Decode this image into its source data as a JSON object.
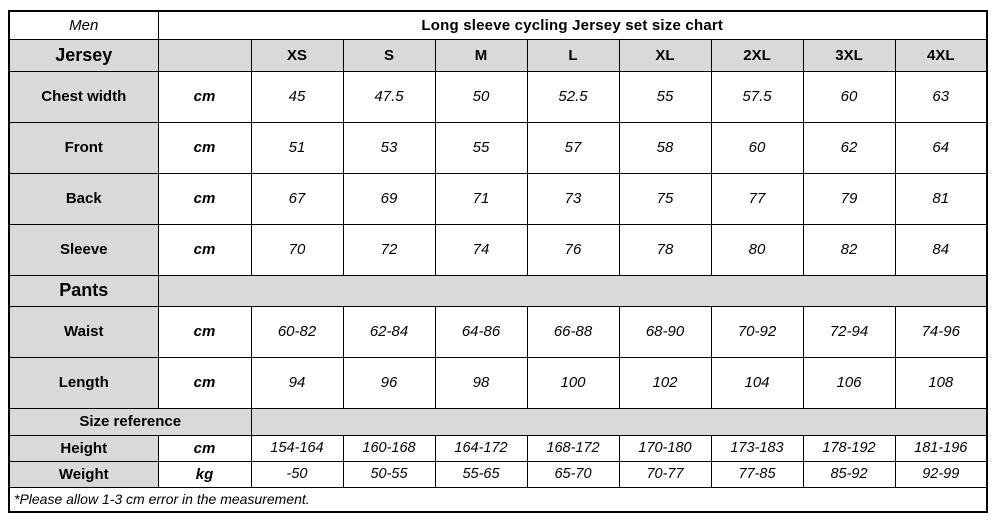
{
  "header": {
    "gender": "Men",
    "title": "Long sleeve cycling Jersey set size chart"
  },
  "sizes": [
    "XS",
    "S",
    "M",
    "L",
    "XL",
    "2XL",
    "3XL",
    "4XL"
  ],
  "jersey": {
    "label": "Jersey",
    "rows": [
      {
        "label": "Chest width",
        "unit": "cm",
        "values": [
          "45",
          "47.5",
          "50",
          "52.5",
          "55",
          "57.5",
          "60",
          "63"
        ]
      },
      {
        "label": "Front",
        "unit": "cm",
        "values": [
          "51",
          "53",
          "55",
          "57",
          "58",
          "60",
          "62",
          "64"
        ]
      },
      {
        "label": "Back",
        "unit": "cm",
        "values": [
          "67",
          "69",
          "71",
          "73",
          "75",
          "77",
          "79",
          "81"
        ]
      },
      {
        "label": "Sleeve",
        "unit": "cm",
        "values": [
          "70",
          "72",
          "74",
          "76",
          "78",
          "80",
          "82",
          "84"
        ]
      }
    ]
  },
  "pants": {
    "label": "Pants",
    "rows": [
      {
        "label": "Waist",
        "unit": "cm",
        "values": [
          "60-82",
          "62-84",
          "64-86",
          "66-88",
          "68-90",
          "70-92",
          "72-94",
          "74-96"
        ]
      },
      {
        "label": "Length",
        "unit": "cm",
        "values": [
          "94",
          "96",
          "98",
          "100",
          "102",
          "104",
          "106",
          "108"
        ]
      }
    ]
  },
  "size_reference": {
    "label": "Size reference",
    "rows": [
      {
        "label": "Height",
        "unit": "cm",
        "values": [
          "154-164",
          "160-168",
          "164-172",
          "168-172",
          "170-180",
          "173-183",
          "178-192",
          "181-196"
        ]
      },
      {
        "label": "Weight",
        "unit": "kg",
        "values": [
          "-50",
          "50-55",
          "55-65",
          "65-70",
          "70-77",
          "77-85",
          "85-92",
          "92-99"
        ]
      }
    ]
  },
  "footnote": "*Please allow 1-3 cm error in the measurement.",
  "colors": {
    "header_bg": "#d9d9d9",
    "border": "#000000",
    "background": "#ffffff",
    "text": "#000000"
  }
}
